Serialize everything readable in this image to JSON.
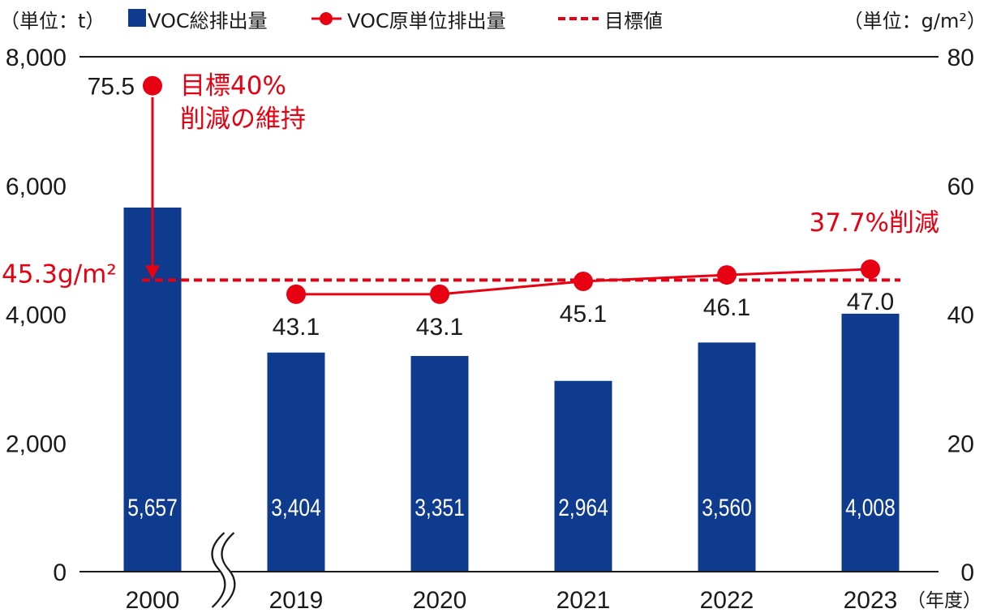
{
  "chart_data": {
    "type": "bar",
    "categories": [
      "2000",
      "2019",
      "2020",
      "2021",
      "2022",
      "2023"
    ],
    "xlabel": "（年度）",
    "axis_break_after_index": 0,
    "series": [
      {
        "name": "VOC総排出量",
        "type": "bar",
        "axis": "left",
        "color": "#0f3b8f",
        "values": [
          5657,
          3404,
          3351,
          2964,
          3560,
          4008
        ],
        "data_labels": [
          "5,657",
          "3,404",
          "3,351",
          "2,964",
          "3,560",
          "4,008"
        ]
      },
      {
        "name": "VOC原単位排出量",
        "type": "line",
        "axis": "right",
        "color": "#e60012",
        "values": [
          75.5,
          43.1,
          43.1,
          45.1,
          46.1,
          47.0
        ],
        "data_labels": [
          "75.5",
          "43.1",
          "43.1",
          "45.1",
          "46.1",
          "47.0"
        ],
        "connected_to_previous": [
          false,
          false,
          true,
          true,
          true,
          true
        ]
      },
      {
        "name": "目標値",
        "type": "dashed-line",
        "axis": "right",
        "color": "#e60012",
        "value": 45.3,
        "label": "45.3g/m²"
      }
    ],
    "left_axis": {
      "label": "（単位：t）",
      "ylim": [
        0,
        8000
      ],
      "ticks": [
        0,
        2000,
        4000,
        6000,
        8000
      ],
      "tick_labels": [
        "0",
        "2,000",
        "4,000",
        "6,000",
        "8,000"
      ]
    },
    "right_axis": {
      "label": "（単位：g/m²）",
      "ylim": [
        0,
        80
      ],
      "ticks": [
        0,
        20,
        40,
        60,
        80
      ],
      "tick_labels": [
        "0",
        "20",
        "40",
        "60",
        "80"
      ]
    },
    "annotations": [
      {
        "lines": [
          "目標40%",
          "削減の維持"
        ],
        "color": "#e60012"
      },
      {
        "text": "37.7%削減",
        "color": "#e60012"
      }
    ],
    "grid": false,
    "legend_position": "top"
  }
}
